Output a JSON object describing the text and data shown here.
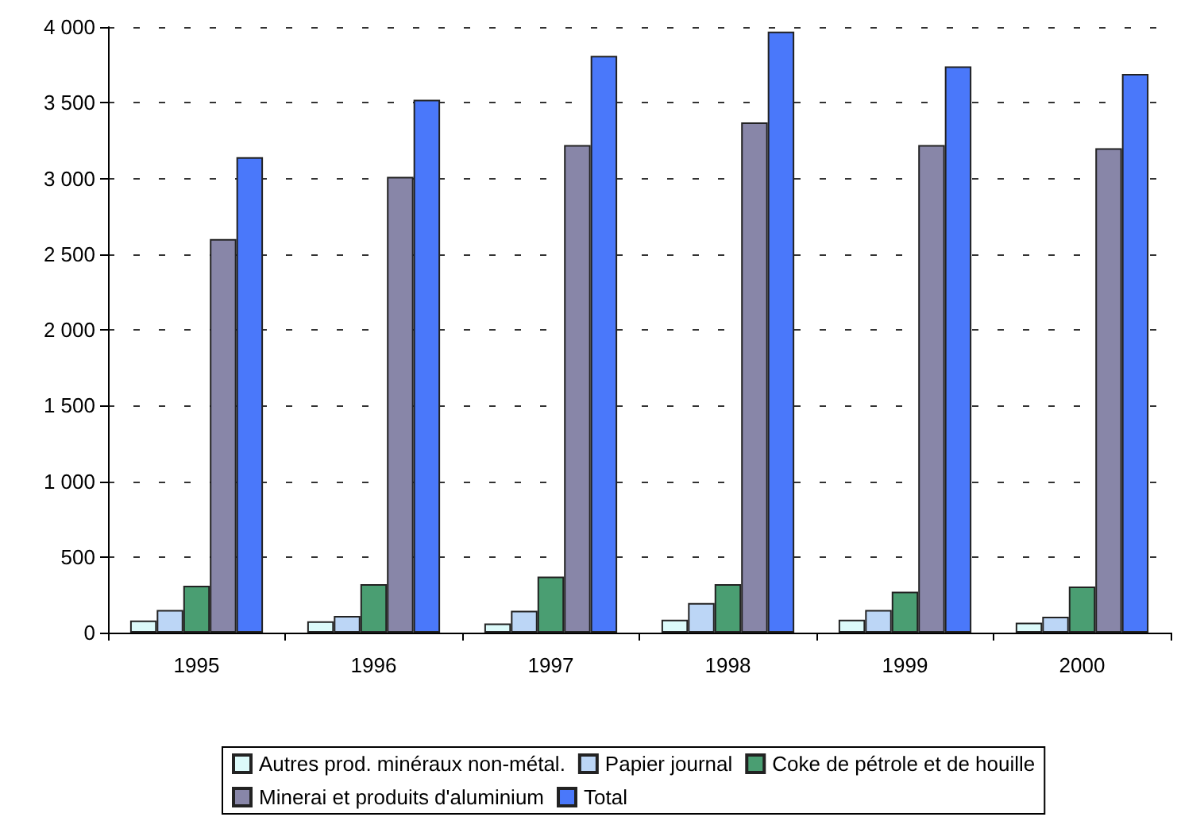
{
  "chart_data": {
    "type": "bar",
    "categories": [
      "1995",
      "1996",
      "1997",
      "1998",
      "1999",
      "2000"
    ],
    "series": [
      {
        "name": "Autres prod. minéraux non-métal.",
        "color": "#dcfafa",
        "values": [
          80,
          75,
          60,
          85,
          85,
          65
        ]
      },
      {
        "name": "Papier journal",
        "color": "#bcd6f6",
        "values": [
          150,
          110,
          145,
          195,
          150,
          105
        ]
      },
      {
        "name": "Coke de pétrole et de houille",
        "color": "#4a9e72",
        "values": [
          310,
          320,
          370,
          320,
          270,
          305
        ]
      },
      {
        "name": "Minerai et produits d'aluminium",
        "color": "#8886a8",
        "values": [
          2600,
          3010,
          3220,
          3370,
          3220,
          3200
        ]
      },
      {
        "name": "Total",
        "color": "#4a78fa",
        "values": [
          3140,
          3520,
          3810,
          3970,
          3740,
          3690
        ]
      }
    ],
    "ylim": [
      0,
      4000
    ],
    "yticks": [
      0,
      500,
      {
        "value": 1000,
        "label": "1 000"
      },
      {
        "value": 1500,
        "label": "1 500"
      },
      {
        "value": 2000,
        "label": "2 000"
      },
      {
        "value": 2500,
        "label": "2 500"
      },
      {
        "value": 3000,
        "label": "3 000"
      },
      {
        "value": 3500,
        "label": "3 500"
      },
      {
        "value": 4000,
        "label": "4 000"
      }
    ],
    "grid": "y",
    "line_style": "dashed",
    "legend": "bottom"
  }
}
